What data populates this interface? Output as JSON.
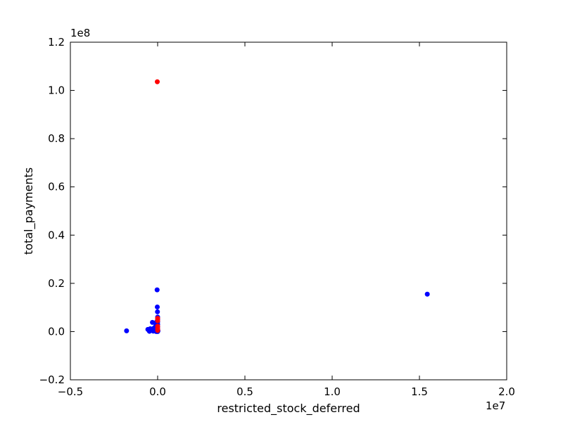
{
  "chart_data": {
    "type": "scatter",
    "title": "",
    "xlabel": "restricted_stock_deferred",
    "ylabel": "total_payments",
    "xlim": [
      -5000000,
      20000000
    ],
    "ylim": [
      -20000000,
      120000000
    ],
    "x_ticks": [
      -5000000,
      0,
      5000000,
      10000000,
      15000000,
      20000000
    ],
    "x_tick_labels": [
      "−0.5",
      "0.0",
      "0.5",
      "1.0",
      "1.5",
      "2.0"
    ],
    "y_ticks": [
      -20000000,
      0,
      20000000,
      40000000,
      60000000,
      80000000,
      100000000,
      120000000
    ],
    "y_tick_labels": [
      "−0.2",
      "0.0",
      "0.2",
      "0.4",
      "0.6",
      "0.8",
      "1.0",
      "1.2"
    ],
    "x_offset_label": "1e7",
    "y_offset_label": "1e8",
    "grid": false,
    "series": [
      {
        "color": "#0000ff",
        "points": [
          [
            15450000,
            15500000
          ],
          [
            -1780000,
            300000
          ],
          [
            -560000,
            900000
          ],
          [
            -470000,
            100000
          ],
          [
            -420000,
            1200000
          ],
          [
            -350000,
            600000
          ],
          [
            -300000,
            3800000
          ],
          [
            -250000,
            200000
          ],
          [
            -200000,
            1500000
          ],
          [
            -150000,
            800000
          ],
          [
            -100000,
            2500000
          ],
          [
            -60000,
            4000000
          ],
          [
            -30000,
            17300000
          ],
          [
            -20000,
            10200000
          ],
          [
            -10000,
            8200000
          ],
          [
            0,
            6000000
          ],
          [
            0,
            5000000
          ],
          [
            0,
            4000000
          ],
          [
            0,
            3000000
          ],
          [
            0,
            2000000
          ],
          [
            0,
            1000000
          ],
          [
            0,
            500000
          ],
          [
            0,
            0
          ],
          [
            20000,
            300000
          ],
          [
            -80000,
            0
          ]
        ]
      },
      {
        "color": "#ff0000",
        "points": [
          [
            -20000,
            103600000
          ],
          [
            0,
            5500000
          ],
          [
            0,
            4500000
          ],
          [
            0,
            2200000
          ],
          [
            0,
            1300000
          ],
          [
            0,
            500000
          ]
        ]
      }
    ]
  }
}
